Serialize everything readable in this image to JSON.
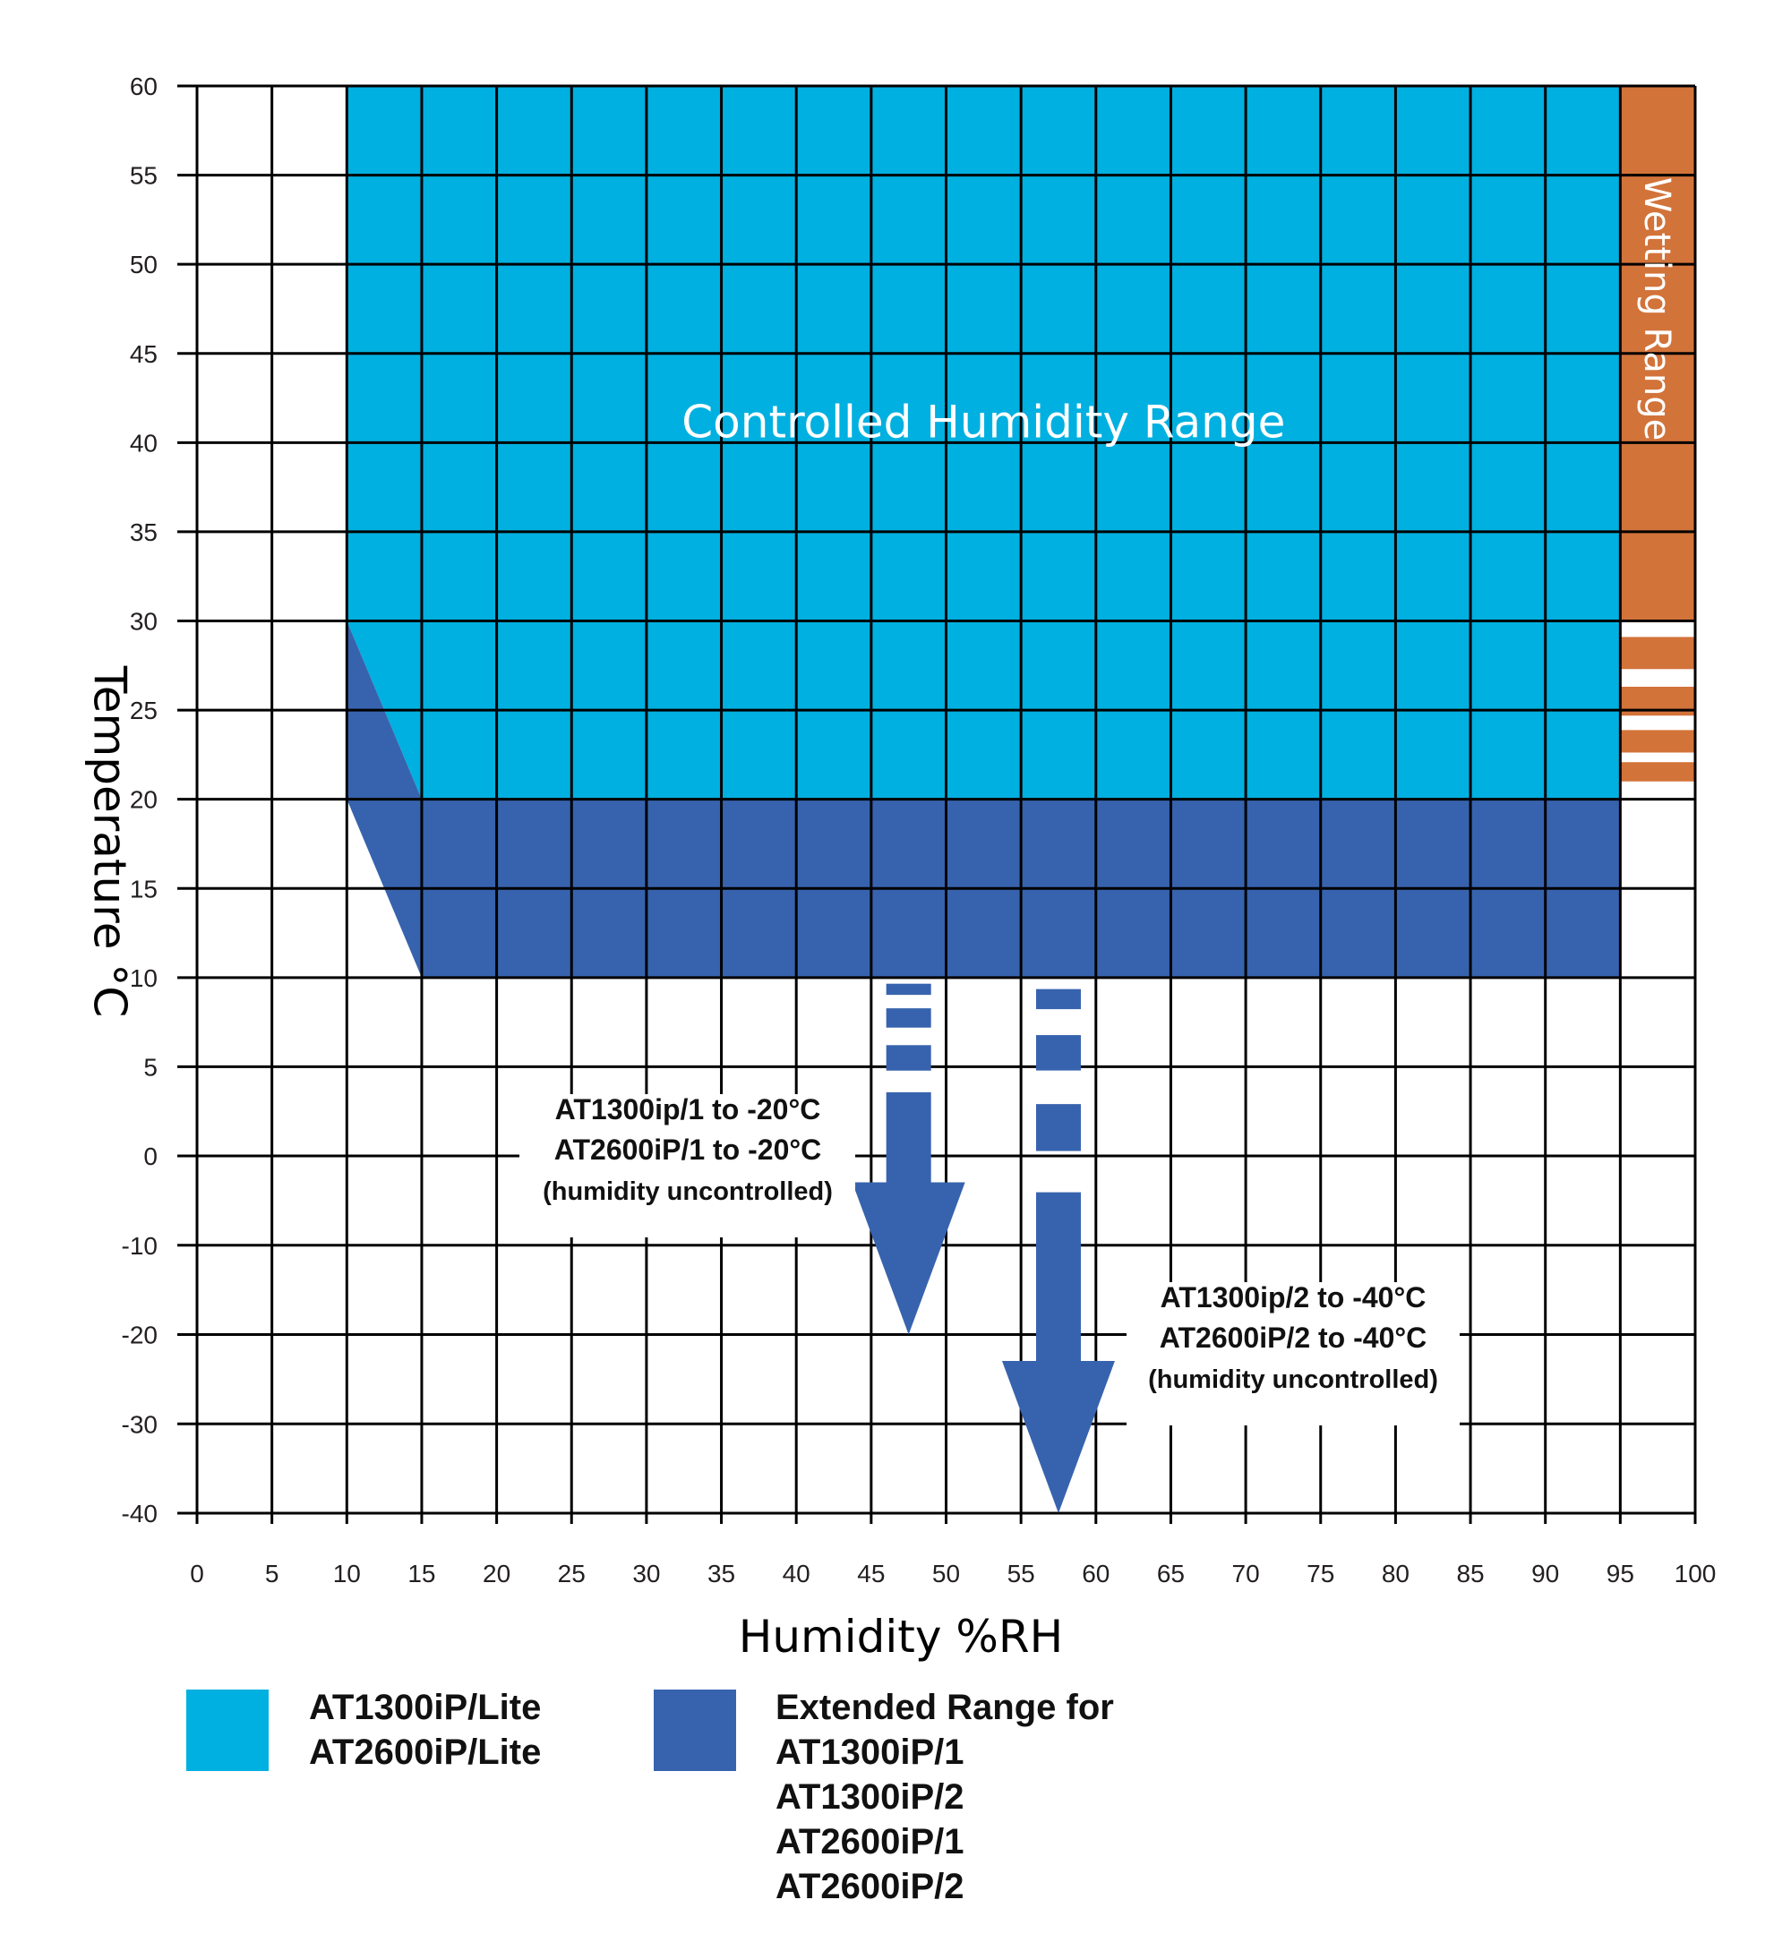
{
  "chart_data": {
    "type": "area",
    "xlabel": "Humidity %RH",
    "ylabel": "Temperature °C",
    "x_ticks": [
      0,
      5,
      10,
      15,
      20,
      25,
      30,
      35,
      40,
      45,
      50,
      55,
      60,
      65,
      70,
      75,
      80,
      85,
      90,
      95,
      100
    ],
    "y_ticks": [
      60,
      55,
      50,
      45,
      40,
      35,
      30,
      25,
      20,
      15,
      10,
      5,
      0,
      -10,
      -20,
      -30,
      -40
    ],
    "xlim": [
      0,
      100
    ],
    "ylim": [
      -40,
      60
    ],
    "grid": true,
    "regions": [
      {
        "name": "Controlled Humidity Range",
        "label": "Controlled Humidity Range",
        "color": "#00b0e0",
        "polygon": [
          [
            10,
            60
          ],
          [
            95,
            60
          ],
          [
            95,
            20
          ],
          [
            15,
            20
          ],
          [
            10,
            30
          ]
        ]
      },
      {
        "name": "Extended Range",
        "color": "#3763ae",
        "polygon": [
          [
            10,
            30
          ],
          [
            15,
            20
          ],
          [
            95,
            20
          ],
          [
            95,
            10
          ],
          [
            15,
            10
          ],
          [
            10,
            20
          ]
        ]
      },
      {
        "name": "Wetting Range",
        "label": "Wetting Range",
        "color": "#d2733a",
        "polygon": [
          [
            95,
            60
          ],
          [
            100,
            60
          ],
          [
            100,
            30
          ],
          [
            95,
            30
          ]
        ],
        "dashed_continuation_to": 21
      }
    ],
    "arrows": [
      {
        "x": 47.5,
        "from": 10,
        "to": -20,
        "lines": [
          "AT1300ip/1 to -20°C",
          "AT2600iP/1 to -20°C",
          "(humidity uncontrolled)"
        ]
      },
      {
        "x": 57.5,
        "from": 10,
        "to": -40,
        "lines": [
          "AT1300ip/2 to -40°C",
          "AT2600iP/2 to -40°C",
          "(humidity uncontrolled)"
        ]
      }
    ],
    "legend": {
      "placement": "bottom",
      "items": [
        {
          "color": "#00b0e0",
          "lines": [
            "AT1300iP/Lite",
            "AT2600iP/Lite"
          ]
        },
        {
          "color": "#3763ae",
          "lines": [
            "Extended Range for",
            "AT1300iP/1",
            "AT1300iP/2",
            "AT2600iP/1",
            "AT2600iP/2"
          ]
        }
      ]
    }
  }
}
